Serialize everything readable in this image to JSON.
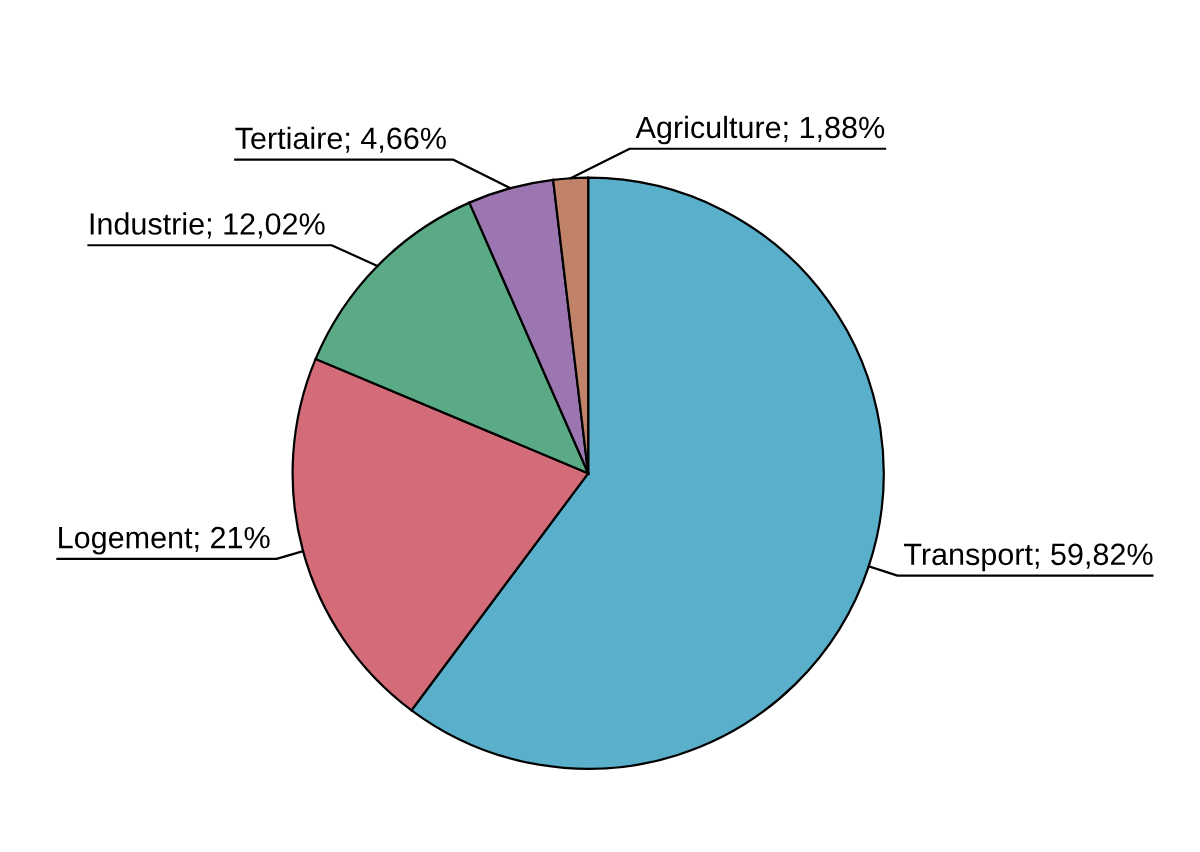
{
  "chart_data": {
    "type": "pie",
    "categories": [
      "Transport",
      "Logement",
      "Industrie",
      "Tertiaire",
      "Agriculture"
    ],
    "values": [
      59.82,
      21,
      12.02,
      4.66,
      1.88
    ],
    "value_labels": [
      "59,82%",
      "21%",
      "12,02%",
      "4,66%",
      "1,88%"
    ],
    "colors": [
      "#5aafcb",
      "#d36b78",
      "#5aab85",
      "#9b76b0",
      "#c0836a"
    ],
    "legend": false
  }
}
